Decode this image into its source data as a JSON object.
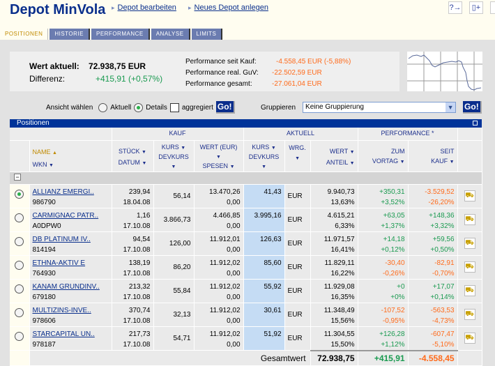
{
  "header": {
    "title": "Depot MinVola",
    "links": [
      "Depot bearbeiten",
      "Neues Depot anlegen"
    ],
    "icons": [
      "help-icon",
      "new-page-icon",
      "print-icon"
    ]
  },
  "tabs": [
    "POSITIONEN",
    "HISTORIE",
    "PERFORMANCE",
    "ANALYSE",
    "LIMITS"
  ],
  "active_tab": "POSITIONEN",
  "summary": {
    "wert_label": "Wert aktuell:",
    "wert": "72.938,75 EUR",
    "diff_label": "Differenz:",
    "diff": "+415,91 (+0,57%)",
    "perf": [
      {
        "label": "Performance seit Kauf:",
        "value": "-4.558,45 EUR (-5,88%)"
      },
      {
        "label": "Performance real. GuV:",
        "value": "-22.502,59 EUR"
      },
      {
        "label": "Performance gesamt:",
        "value": "-27.061,04 EUR"
      }
    ]
  },
  "controls": {
    "ansicht_label": "Ansicht wählen",
    "aktuell": "Aktuell",
    "details": "Details",
    "selected": "Details",
    "aggregiert": "aggregiert",
    "aggregiert_checked": false,
    "go": "Go!",
    "gruppieren_label": "Gruppieren",
    "gruppieren_value": "Keine Gruppierung"
  },
  "positionen": {
    "title": "Positionen",
    "groups": {
      "kauf": "KAUF",
      "aktuell": "AKTUELL",
      "performance": "PERFORMANCE *"
    },
    "cols": {
      "name": "NAME",
      "wkn": "WKN",
      "stueck": "STÜCK",
      "datum": "DATUM",
      "kurs": "KURS",
      "devkurs": "DEVKURS",
      "wert_eur": "WERT (EUR)",
      "spesen": "SPESEN",
      "akurs": "KURS",
      "adevkurs": "DEVKURS",
      "wrg": "WRG.",
      "wert": "WERT",
      "anteil": "ANTEIL",
      "zum": "ZUM",
      "vortag": "VORTAG",
      "seit": "SEIT",
      "kauf": "KAUF"
    },
    "rows": [
      {
        "name": "ALLIANZ EMERGI..",
        "wkn": "986790",
        "stueck": "239,94",
        "datum": "18.04.08",
        "kurs": "56,14",
        "wert": "13.470,26",
        "spesen": "0,00",
        "akurs": "41,43",
        "wrg": "EUR",
        "awert": "9.940,73",
        "anteil": "13,63%",
        "vortag": "+350,31",
        "vortag_pct": "+3,52%",
        "seit": "-3.529,52",
        "seit_pct": "-26,20%",
        "vt": "pos",
        "sk": "neg",
        "selected": true
      },
      {
        "name": "CARMIGNAC PATR..",
        "wkn": "A0DPW0",
        "stueck": "1,16",
        "datum": "17.10.08",
        "kurs": "3.866,73",
        "wert": "4.466,85",
        "spesen": "0,00",
        "akurs": "3.995,16",
        "wrg": "EUR",
        "awert": "4.615,21",
        "anteil": "6,33%",
        "vortag": "+63,05",
        "vortag_pct": "+1,37%",
        "seit": "+148,36",
        "seit_pct": "+3,32%",
        "vt": "pos",
        "sk": "pos"
      },
      {
        "name": "DB PLATINUM IV..",
        "wkn": "814194",
        "stueck": "94,54",
        "datum": "17.10.08",
        "kurs": "126,00",
        "wert": "11.912,01",
        "spesen": "0,00",
        "akurs": "126,63",
        "wrg": "EUR",
        "awert": "11.971,57",
        "anteil": "16,41%",
        "vortag": "+14,18",
        "vortag_pct": "+0,12%",
        "seit": "+59,56",
        "seit_pct": "+0,50%",
        "vt": "pos",
        "sk": "pos"
      },
      {
        "name": "ETHNA-AKTIV E",
        "wkn": "764930",
        "stueck": "138,19",
        "datum": "17.10.08",
        "kurs": "86,20",
        "wert": "11.912,02",
        "spesen": "0,00",
        "akurs": "85,60",
        "wrg": "EUR",
        "awert": "11.829,11",
        "anteil": "16,22%",
        "vortag": "-30,40",
        "vortag_pct": "-0,26%",
        "seit": "-82,91",
        "seit_pct": "-0,70%",
        "vt": "neg",
        "sk": "neg"
      },
      {
        "name": "KANAM GRUNDINV..",
        "wkn": "679180",
        "stueck": "213,32",
        "datum": "17.10.08",
        "kurs": "55,84",
        "wert": "11.912,02",
        "spesen": "0,00",
        "akurs": "55,92",
        "wrg": "EUR",
        "awert": "11.929,08",
        "anteil": "16,35%",
        "vortag": "+0",
        "vortag_pct": "+0%",
        "seit": "+17,07",
        "seit_pct": "+0,14%",
        "vt": "pos",
        "sk": "pos"
      },
      {
        "name": "MULTIZINS-INVE..",
        "wkn": "978606",
        "stueck": "370,74",
        "datum": "17.10.08",
        "kurs": "32,13",
        "wert": "11.912,02",
        "spesen": "0,00",
        "akurs": "30,61",
        "wrg": "EUR",
        "awert": "11.348,49",
        "anteil": "15,56%",
        "vortag": "-107,52",
        "vortag_pct": "-0,95%",
        "seit": "-563,53",
        "seit_pct": "-4,73%",
        "vt": "neg",
        "sk": "neg"
      },
      {
        "name": "STARCAPITAL UN..",
        "wkn": "978187",
        "stueck": "217,73",
        "datum": "17.10.08",
        "kurs": "54,71",
        "wert": "11.912,02",
        "spesen": "0,00",
        "akurs": "51,92",
        "wrg": "EUR",
        "awert": "11.304,55",
        "anteil": "15,50%",
        "vortag": "+126,28",
        "vortag_pct": "+1,12%",
        "seit": "-607,47",
        "seit_pct": "-5,10%",
        "vt": "pos",
        "sk": "neg"
      }
    ],
    "total": {
      "label": "Gesamtwert",
      "wert": "72.938,75",
      "vortag": "+415,91",
      "seit": "-4.558,45"
    }
  },
  "colors": {
    "brand": "#003399",
    "positive": "#1a9a50",
    "negative": "#ff6a1a",
    "tab": "#6b7cb0"
  }
}
